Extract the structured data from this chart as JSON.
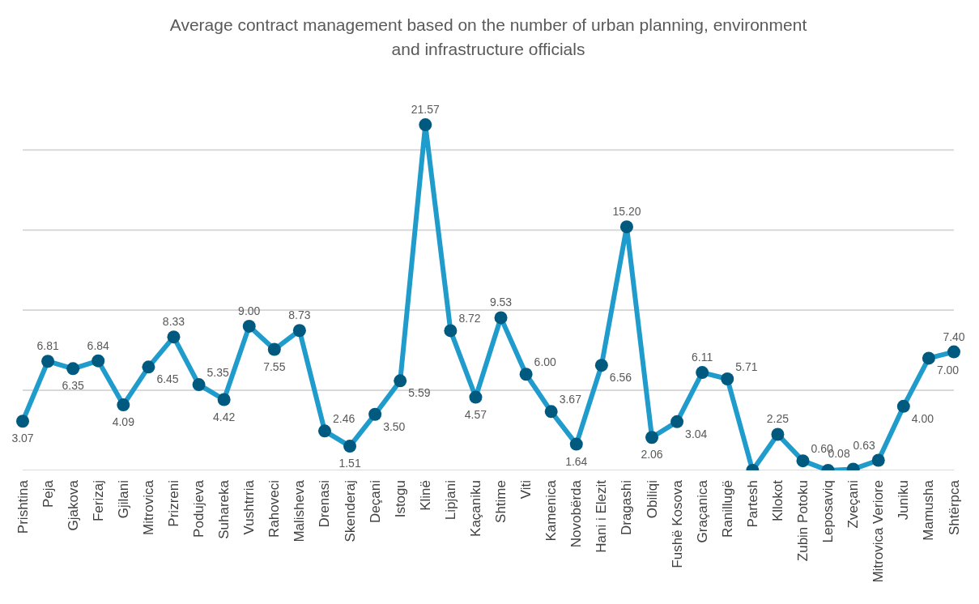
{
  "chart_data": {
    "type": "line",
    "title": "Average contract management based on the number of urban planning, environment and infrastructure officials",
    "categories": [
      "Prishtina",
      "Peja",
      "Gjakova",
      "Ferizaj",
      "Gjilani",
      "Mitrovica",
      "Prizreni",
      "Podujeva",
      "Suhareka",
      "Vushtrria",
      "Rahoveci",
      "Malisheva",
      "Drenasi",
      "Skenderaj",
      "Deçani",
      "Istogu",
      "Klinë",
      "Lipjani",
      "Kaçaniku",
      "Shtime",
      "Viti",
      "Kamenica",
      "Novobërda",
      "Hani i Elezit",
      "Dragashi",
      "Obiliqi",
      "Fushë Kosova",
      "Graçanica",
      "Ranillugë",
      "Partesh",
      "Kllokot",
      "Zubin Potoku",
      "Leposaviq",
      "Zveçani",
      "Mitrovica Veriore",
      "Juniku",
      "Mamusha",
      "Shtërpca"
    ],
    "series": [
      {
        "color": "#1f9bcc",
        "colors": [
          "#005a80",
          "#005a80",
          "#005a80",
          "#005a80",
          "#005a80",
          "#005a80",
          "#005a80",
          "#005a80",
          "#005a80",
          "#005a80",
          "#005a80",
          "#005a80",
          "#005a80",
          "#005a80",
          "#005a80",
          "#005a80",
          "#005a80",
          "#005a80",
          "#005a80",
          "#005a80",
          "#005a80",
          "#005a80",
          "#005a80",
          "#005a80",
          "#005a80",
          "#005a80",
          "#005a80",
          "#005a80",
          "#005a80",
          "#005a80",
          "#005a80",
          "#005a80",
          "#005a80",
          "#005a80",
          "#005a80",
          "#005a80",
          "#005a80",
          "#005a80"
        ],
        "values": [
          3.07,
          6.81,
          6.35,
          6.84,
          4.09,
          6.45,
          8.33,
          5.35,
          4.42,
          9.0,
          7.55,
          8.73,
          2.46,
          1.51,
          3.5,
          5.59,
          21.57,
          8.72,
          4.57,
          9.53,
          6.0,
          3.67,
          1.64,
          6.56,
          15.2,
          2.06,
          3.04,
          6.11,
          5.71,
          0,
          2.25,
          0.6,
          0,
          0.08,
          0.63,
          4.0,
          7.0,
          7.4
        ],
        "value_labels": [
          "3.07",
          "6.81",
          "6.35",
          "6.84",
          "4.09",
          "6.45",
          "8.33",
          "5.35",
          "4.42",
          "9.00",
          "7.55",
          "8.73",
          "2.46",
          "1.51",
          "3.50",
          "5.59",
          "21.57",
          "8.72",
          "4.57",
          "9.53",
          "6.00",
          "3.67",
          "1.64",
          "6.56",
          "15.20",
          "2.06",
          "3.04",
          "6.11",
          "5.71",
          null,
          "2.25",
          "0.60",
          null,
          "0.08",
          "0.63",
          "4.00",
          "7.00",
          "7.40"
        ]
      }
    ],
    "yticks": [
      {
        "value": 0,
        "label": null
      },
      {
        "value": 5,
        "label": null
      },
      {
        "value": 10,
        "label": null
      },
      {
        "value": 15,
        "label": null
      },
      {
        "value": 20,
        "label": null
      }
    ],
    "tick_labels": "x",
    "grid": "y",
    "marker": "circle",
    "line_style": "solid"
  }
}
